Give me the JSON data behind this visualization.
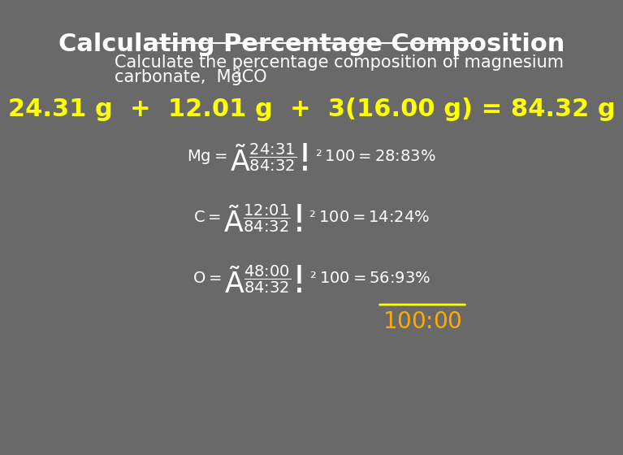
{
  "background_color": "#696969",
  "title": "Calculating Percentage Composition",
  "title_color": "#ffffff",
  "title_fontsize": 22,
  "subtitle_line1": "Calculate the percentage composition of magnesium",
  "subtitle_line2": "carbonate,  MgCO",
  "subtitle_subscript": "3",
  "subtitle_end": ".",
  "subtitle_color": "#ffffff",
  "subtitle_fontsize": 15,
  "equation_line": "24.31 g  +  12.01 g  +  3(16.00 g) = 84.32 g",
  "equation_color": "#ffff00",
  "equation_fontsize": 22,
  "formula_color": "#ffffff",
  "formula_fontsize": 14,
  "result_color": "#ffff00",
  "result_fontsize": 20
}
